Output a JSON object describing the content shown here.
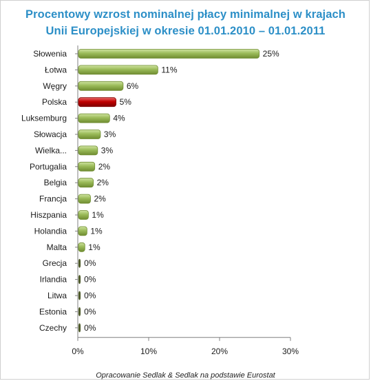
{
  "chart_data": {
    "type": "bar",
    "orientation": "horizontal",
    "title_line1": "Procentowy wzrost nominalnej płacy minimalnej w krajach",
    "title_line2": "Unii Europejskiej  w okresie 01.01.2010 – 01.01.2011",
    "xlabel": "",
    "ylabel": "",
    "xlim": [
      0,
      30
    ],
    "xticks": [
      0,
      10,
      20,
      30
    ],
    "xtick_labels": [
      "0%",
      "10%",
      "20%",
      "30%"
    ],
    "grid": false,
    "legend": "none",
    "categories": [
      "Słowenia",
      "Łotwa",
      "Węgry",
      "Polska",
      "Luksemburg",
      "Słowacja",
      "Wielka...",
      "Portugalia",
      "Belgia",
      "Francja",
      "Hiszpania",
      "Holandia",
      "Malta",
      "Grecja",
      "Irlandia",
      "Litwa",
      "Estonia",
      "Czechy"
    ],
    "values": [
      25.5,
      11.2,
      6.3,
      5.3,
      4.4,
      3.1,
      2.7,
      2.3,
      2.1,
      1.7,
      1.4,
      1.2,
      0.9,
      0.3,
      0.3,
      0.3,
      0.3,
      0.3
    ],
    "value_labels": [
      "25%",
      "11%",
      "6%",
      "5%",
      "4%",
      "3%",
      "3%",
      "2%",
      "2%",
      "2%",
      "1%",
      "1%",
      "1%",
      "0%",
      "0%",
      "0%",
      "0%",
      "0%"
    ],
    "highlight_category": "Polska",
    "colors": {
      "bar": "#9bbb59",
      "bar_light": "#cfe3a0",
      "bar_dark": "#6f8c31",
      "highlight": "#c00000",
      "highlight_light": "#ea6a6a",
      "highlight_dark": "#7f0000",
      "zero_bar": "#4f5b2b",
      "title": "#2c8fc7",
      "axis": "#7f7f7f"
    }
  },
  "footnote": "Opracowanie Sedlak & Sedlak na podstawie Eurostat"
}
